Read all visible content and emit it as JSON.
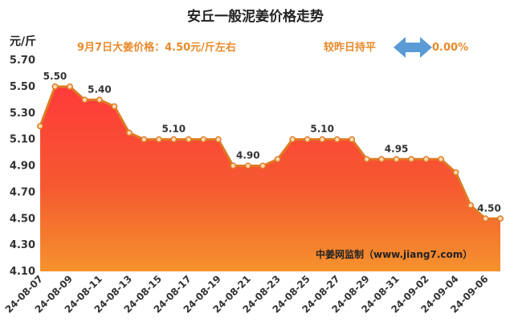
{
  "chart_data": {
    "type": "area",
    "title": "安丘一般泥姜价格走势",
    "unit_label": "元/斤",
    "price_note": "9月7日大姜价格：4.50元/斤左右",
    "change_note": "较昨日持平",
    "change_value": "0.00%",
    "watermark": "中姜网监制（www.jiang7.com）",
    "ylim": [
      4.1,
      5.7
    ],
    "yticks": [
      "4.10",
      "4.30",
      "4.50",
      "4.70",
      "4.90",
      "5.10",
      "5.30",
      "5.50",
      "5.70"
    ],
    "x": [
      "24-08-07",
      "24-08-08",
      "24-08-09",
      "24-08-10",
      "24-08-11",
      "24-08-12",
      "24-08-13",
      "24-08-14",
      "24-08-15",
      "24-08-16",
      "24-08-17",
      "24-08-18",
      "24-08-19",
      "24-08-20",
      "24-08-21",
      "24-08-22",
      "24-08-23",
      "24-08-24",
      "24-08-25",
      "24-08-26",
      "24-08-27",
      "24-08-28",
      "24-08-29",
      "24-08-30",
      "24-08-31",
      "24-09-01",
      "24-09-02",
      "24-09-03",
      "24-09-04",
      "24-09-05",
      "24-09-06",
      "24-09-07"
    ],
    "xtick_labels": [
      "24-08-07",
      "24-08-09",
      "24-08-11",
      "24-08-13",
      "24-08-15",
      "24-08-17",
      "24-08-19",
      "24-08-21",
      "24-08-23",
      "24-08-25",
      "24-08-27",
      "24-08-29",
      "24-08-31",
      "24-09-02",
      "24-09-04",
      "24-09-06"
    ],
    "values": [
      5.2,
      5.5,
      5.5,
      5.4,
      5.4,
      5.35,
      5.15,
      5.1,
      5.1,
      5.1,
      5.1,
      5.1,
      5.1,
      4.9,
      4.9,
      4.9,
      4.95,
      5.1,
      5.1,
      5.1,
      5.1,
      5.1,
      4.95,
      4.95,
      4.95,
      4.95,
      4.95,
      4.95,
      4.85,
      4.6,
      4.5,
      4.5
    ],
    "data_labels": [
      {
        "date": "24-08-08",
        "text": "5.50"
      },
      {
        "date": "24-08-11",
        "text": "5.40"
      },
      {
        "date": "24-08-16",
        "text": "5.10"
      },
      {
        "date": "24-08-21",
        "text": "4.90"
      },
      {
        "date": "24-08-26",
        "text": "5.10"
      },
      {
        "date": "24-08-31",
        "text": "4.95"
      },
      {
        "date": "24-09-07",
        "text": "4.50"
      }
    ],
    "colors": {
      "line": "#e07a24",
      "marker_fill": "#fbd9b0",
      "area_top": "#ff3a3a",
      "area_bottom": "#f5922d",
      "note_text": "#e88a2a",
      "arrow": "#5b9bd5"
    }
  }
}
